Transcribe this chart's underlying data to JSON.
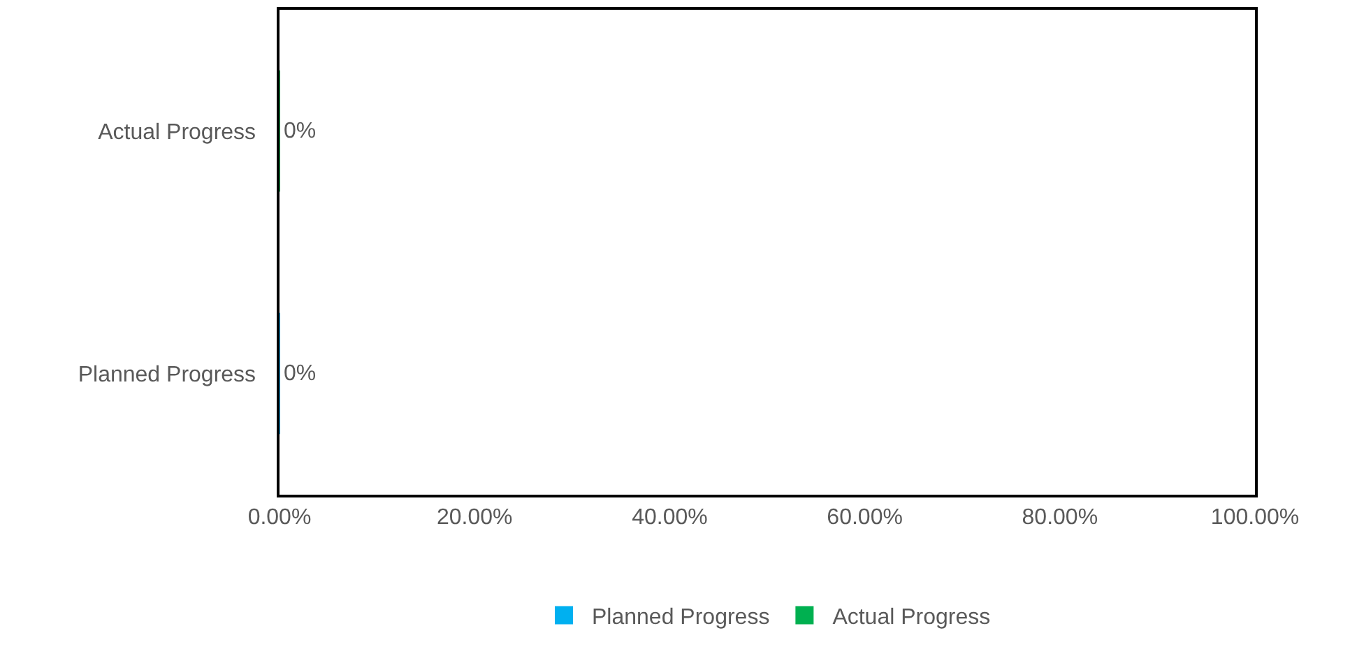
{
  "chart_data": {
    "type": "bar",
    "orientation": "horizontal",
    "categories": [
      "Actual Progress",
      "Planned Progress"
    ],
    "series": [
      {
        "name": "Planned Progress",
        "color": "#00b0f0",
        "values": [
          null,
          0
        ],
        "value_labels": [
          null,
          "0%"
        ]
      },
      {
        "name": "Actual Progress",
        "color": "#00b050",
        "values": [
          0,
          null
        ],
        "value_labels": [
          "0%",
          null
        ]
      }
    ],
    "xlim": [
      0,
      100
    ],
    "xticks": [
      {
        "value": 0,
        "label": "0.00%"
      },
      {
        "value": 20,
        "label": "20.00%"
      },
      {
        "value": 40,
        "label": "40.00%"
      },
      {
        "value": 60,
        "label": "60.00%"
      },
      {
        "value": 80,
        "label": "80.00%"
      },
      {
        "value": 100,
        "label": "100.00%"
      }
    ],
    "legend": "bottom"
  }
}
